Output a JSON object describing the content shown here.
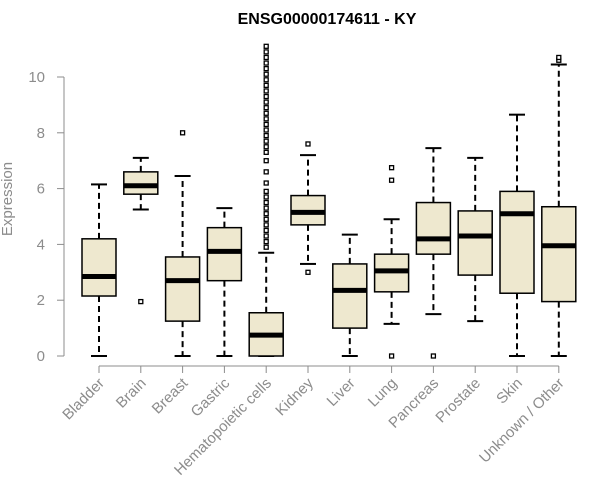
{
  "chart_data": {
    "type": "box",
    "title": "ENSG00000174611 - KY",
    "ylabel": "Expression",
    "xlabel": "",
    "ylim": [
      0,
      11.2
    ],
    "yticks": [
      0,
      2,
      4,
      6,
      8,
      10
    ],
    "box_color": "#eee8cf",
    "categories": [
      "Bladder",
      "Brain",
      "Breast",
      "Gastric",
      "Hematopoietic cells",
      "Kidney",
      "Liver",
      "Lung",
      "Pancreas",
      "Prostate",
      "Skin",
      "Unknown / Other"
    ],
    "boxes": [
      {
        "min": 0,
        "q1": 2.15,
        "median": 2.85,
        "q3": 4.2,
        "max": 6.15,
        "outliers": []
      },
      {
        "min": 5.25,
        "q1": 5.8,
        "median": 6.1,
        "q3": 6.6,
        "max": 7.1,
        "outliers": [
          1.95
        ]
      },
      {
        "min": 0,
        "q1": 1.25,
        "median": 2.7,
        "q3": 3.55,
        "max": 6.45,
        "outliers": [
          8.0
        ]
      },
      {
        "min": 0,
        "q1": 2.7,
        "median": 3.75,
        "q3": 4.6,
        "max": 5.3,
        "outliers": []
      },
      {
        "min": 0,
        "q1": 0,
        "median": 0.75,
        "q3": 1.55,
        "max": 3.7,
        "outliers": [
          3.9,
          4.1,
          4.3,
          4.5,
          4.7,
          4.9,
          5.1,
          5.3,
          5.5,
          5.7,
          5.9,
          6.2,
          6.6,
          7.0,
          7.3,
          7.5,
          7.7,
          7.9,
          8.1,
          8.3,
          8.5,
          8.7,
          8.9,
          9.1,
          9.3,
          9.5,
          9.7,
          9.9,
          10.1,
          10.3,
          10.5,
          10.7,
          10.9,
          11.1
        ]
      },
      {
        "min": 3.3,
        "q1": 4.7,
        "median": 5.15,
        "q3": 5.75,
        "max": 7.2,
        "outliers": [
          3.0,
          7.6
        ]
      },
      {
        "min": 0,
        "q1": 1.0,
        "median": 2.35,
        "q3": 3.3,
        "max": 4.35,
        "outliers": []
      },
      {
        "min": 1.15,
        "q1": 2.3,
        "median": 3.05,
        "q3": 3.65,
        "max": 4.9,
        "outliers": [
          0,
          6.3,
          6.75
        ]
      },
      {
        "min": 1.5,
        "q1": 3.65,
        "median": 4.2,
        "q3": 5.5,
        "max": 7.45,
        "outliers": [
          0
        ]
      },
      {
        "min": 1.25,
        "q1": 2.9,
        "median": 4.3,
        "q3": 5.2,
        "max": 7.1,
        "outliers": []
      },
      {
        "min": 0,
        "q1": 2.25,
        "median": 5.1,
        "q3": 5.9,
        "max": 8.65,
        "outliers": []
      },
      {
        "min": 0,
        "q1": 1.95,
        "median": 3.95,
        "q3": 5.35,
        "max": 10.45,
        "outliers": [
          10.6,
          10.7
        ]
      }
    ]
  }
}
